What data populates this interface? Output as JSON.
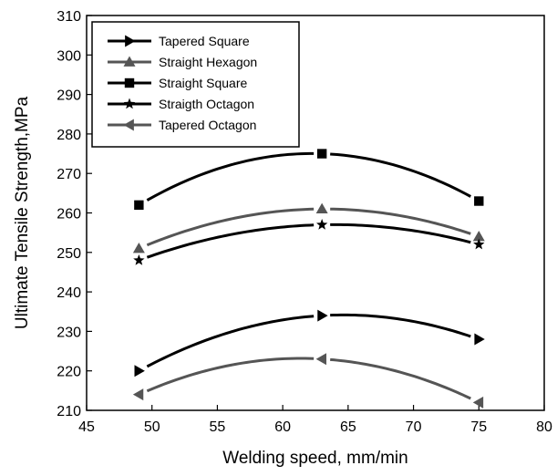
{
  "chart_data": {
    "type": "line",
    "title": "",
    "xlabel": "Welding speed, mm/min",
    "ylabel": "Ultimate Tensile Strength,MPa",
    "xlim": [
      45,
      80
    ],
    "ylim": [
      210,
      310
    ],
    "xticks": [
      45,
      50,
      55,
      60,
      65,
      70,
      75,
      80
    ],
    "yticks": [
      210,
      220,
      230,
      240,
      250,
      260,
      270,
      280,
      290,
      300,
      310
    ],
    "grid": false,
    "legend_position": "top-left",
    "x": [
      49,
      63,
      75
    ],
    "series": [
      {
        "name": "Tapered Square",
        "values": [
          220,
          234,
          228
        ],
        "marker": "triangle-right",
        "color": "#000000"
      },
      {
        "name": "Straight Hexagon",
        "values": [
          251,
          261,
          254
        ],
        "marker": "triangle-up",
        "color": "#555555"
      },
      {
        "name": "Straight Square",
        "values": [
          262,
          275,
          263
        ],
        "marker": "square",
        "color": "#000000"
      },
      {
        "name": "Straigth Octagon",
        "values": [
          248,
          257,
          252
        ],
        "marker": "star",
        "color": "#000000"
      },
      {
        "name": "Tapered Octagon",
        "values": [
          214,
          223,
          212
        ],
        "marker": "triangle-left",
        "color": "#555555"
      }
    ]
  }
}
